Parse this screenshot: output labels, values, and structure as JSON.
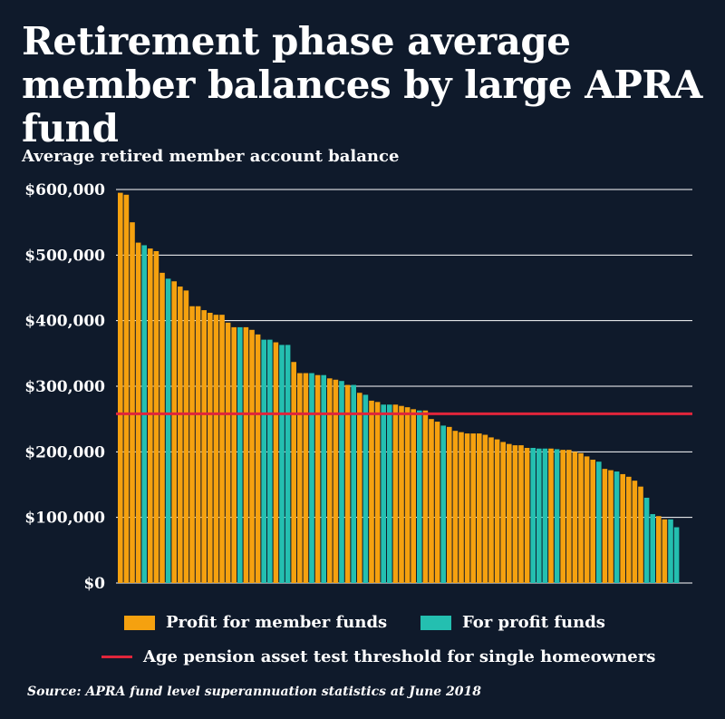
{
  "title": "Retirement phase average member balances by large APRA fund",
  "subtitle": "Average retired member account balance",
  "source": "Source: APRA fund level superannuation statistics at June 2018",
  "colors": {
    "background": "#0f1a2b",
    "profit_for_member": "#f5a10f",
    "for_profit": "#24bfb0",
    "threshold": "#e0253b",
    "grid": "#ffffff"
  },
  "legend": {
    "profit_for_member": "Profit for member funds",
    "for_profit": "For profit funds",
    "threshold": "Age pension asset test threshold for single homeowners"
  },
  "chart_data": {
    "type": "bar",
    "ylabel": "Average retired member account balance",
    "ylim": [
      0,
      600000
    ],
    "yticks": [
      0,
      100000,
      200000,
      300000,
      400000,
      500000,
      600000
    ],
    "ytick_labels": [
      "$0",
      "$100,000",
      "$200,000",
      "$300,000",
      "$400,000",
      "$500,000",
      "$600,000"
    ],
    "threshold": 258000,
    "series": [
      {
        "name": "Profit for member funds",
        "key": "profit_for_member"
      },
      {
        "name": "For profit funds",
        "key": "for_profit"
      }
    ],
    "values": [
      595000,
      592000,
      550000,
      519000,
      515000,
      510000,
      506000,
      473000,
      464000,
      460000,
      452000,
      446000,
      422000,
      422000,
      416000,
      412000,
      409000,
      409000,
      397000,
      390000,
      390000,
      390000,
      386000,
      379000,
      371000,
      371000,
      367000,
      363000,
      363000,
      337000,
      320000,
      320000,
      320000,
      317000,
      317000,
      312000,
      310000,
      308000,
      302000,
      302000,
      290000,
      287000,
      278000,
      276000,
      272000,
      272000,
      272000,
      270000,
      268000,
      265000,
      263000,
      263000,
      250000,
      246000,
      240000,
      238000,
      232000,
      230000,
      228000,
      228000,
      228000,
      226000,
      222000,
      219000,
      215000,
      212000,
      210000,
      210000,
      206000,
      206000,
      205000,
      205000,
      205000,
      204000,
      203000,
      203000,
      200000,
      198000,
      193000,
      188000,
      185000,
      174000,
      172000,
      170000,
      166000,
      162000,
      156000,
      147000,
      130000,
      105000,
      102000,
      97000,
      97000,
      85000
    ],
    "groups": [
      "profit_for_member",
      "profit_for_member",
      "profit_for_member",
      "profit_for_member",
      "for_profit",
      "profit_for_member",
      "profit_for_member",
      "profit_for_member",
      "for_profit",
      "profit_for_member",
      "profit_for_member",
      "profit_for_member",
      "profit_for_member",
      "profit_for_member",
      "profit_for_member",
      "profit_for_member",
      "profit_for_member",
      "profit_for_member",
      "profit_for_member",
      "profit_for_member",
      "for_profit",
      "profit_for_member",
      "profit_for_member",
      "profit_for_member",
      "for_profit",
      "for_profit",
      "profit_for_member",
      "for_profit",
      "for_profit",
      "profit_for_member",
      "profit_for_member",
      "profit_for_member",
      "for_profit",
      "profit_for_member",
      "for_profit",
      "profit_for_member",
      "profit_for_member",
      "for_profit",
      "profit_for_member",
      "for_profit",
      "profit_for_member",
      "for_profit",
      "profit_for_member",
      "profit_for_member",
      "for_profit",
      "for_profit",
      "profit_for_member",
      "profit_for_member",
      "profit_for_member",
      "profit_for_member",
      "for_profit",
      "profit_for_member",
      "profit_for_member",
      "profit_for_member",
      "for_profit",
      "profit_for_member",
      "profit_for_member",
      "profit_for_member",
      "profit_for_member",
      "profit_for_member",
      "profit_for_member",
      "profit_for_member",
      "profit_for_member",
      "profit_for_member",
      "profit_for_member",
      "profit_for_member",
      "profit_for_member",
      "profit_for_member",
      "profit_for_member",
      "for_profit",
      "for_profit",
      "for_profit",
      "profit_for_member",
      "for_profit",
      "profit_for_member",
      "profit_for_member",
      "profit_for_member",
      "profit_for_member",
      "profit_for_member",
      "profit_for_member",
      "for_profit",
      "profit_for_member",
      "profit_for_member",
      "for_profit",
      "profit_for_member",
      "profit_for_member",
      "profit_for_member",
      "profit_for_member",
      "for_profit",
      "for_profit",
      "profit_for_member",
      "profit_for_member",
      "for_profit",
      "for_profit"
    ]
  }
}
